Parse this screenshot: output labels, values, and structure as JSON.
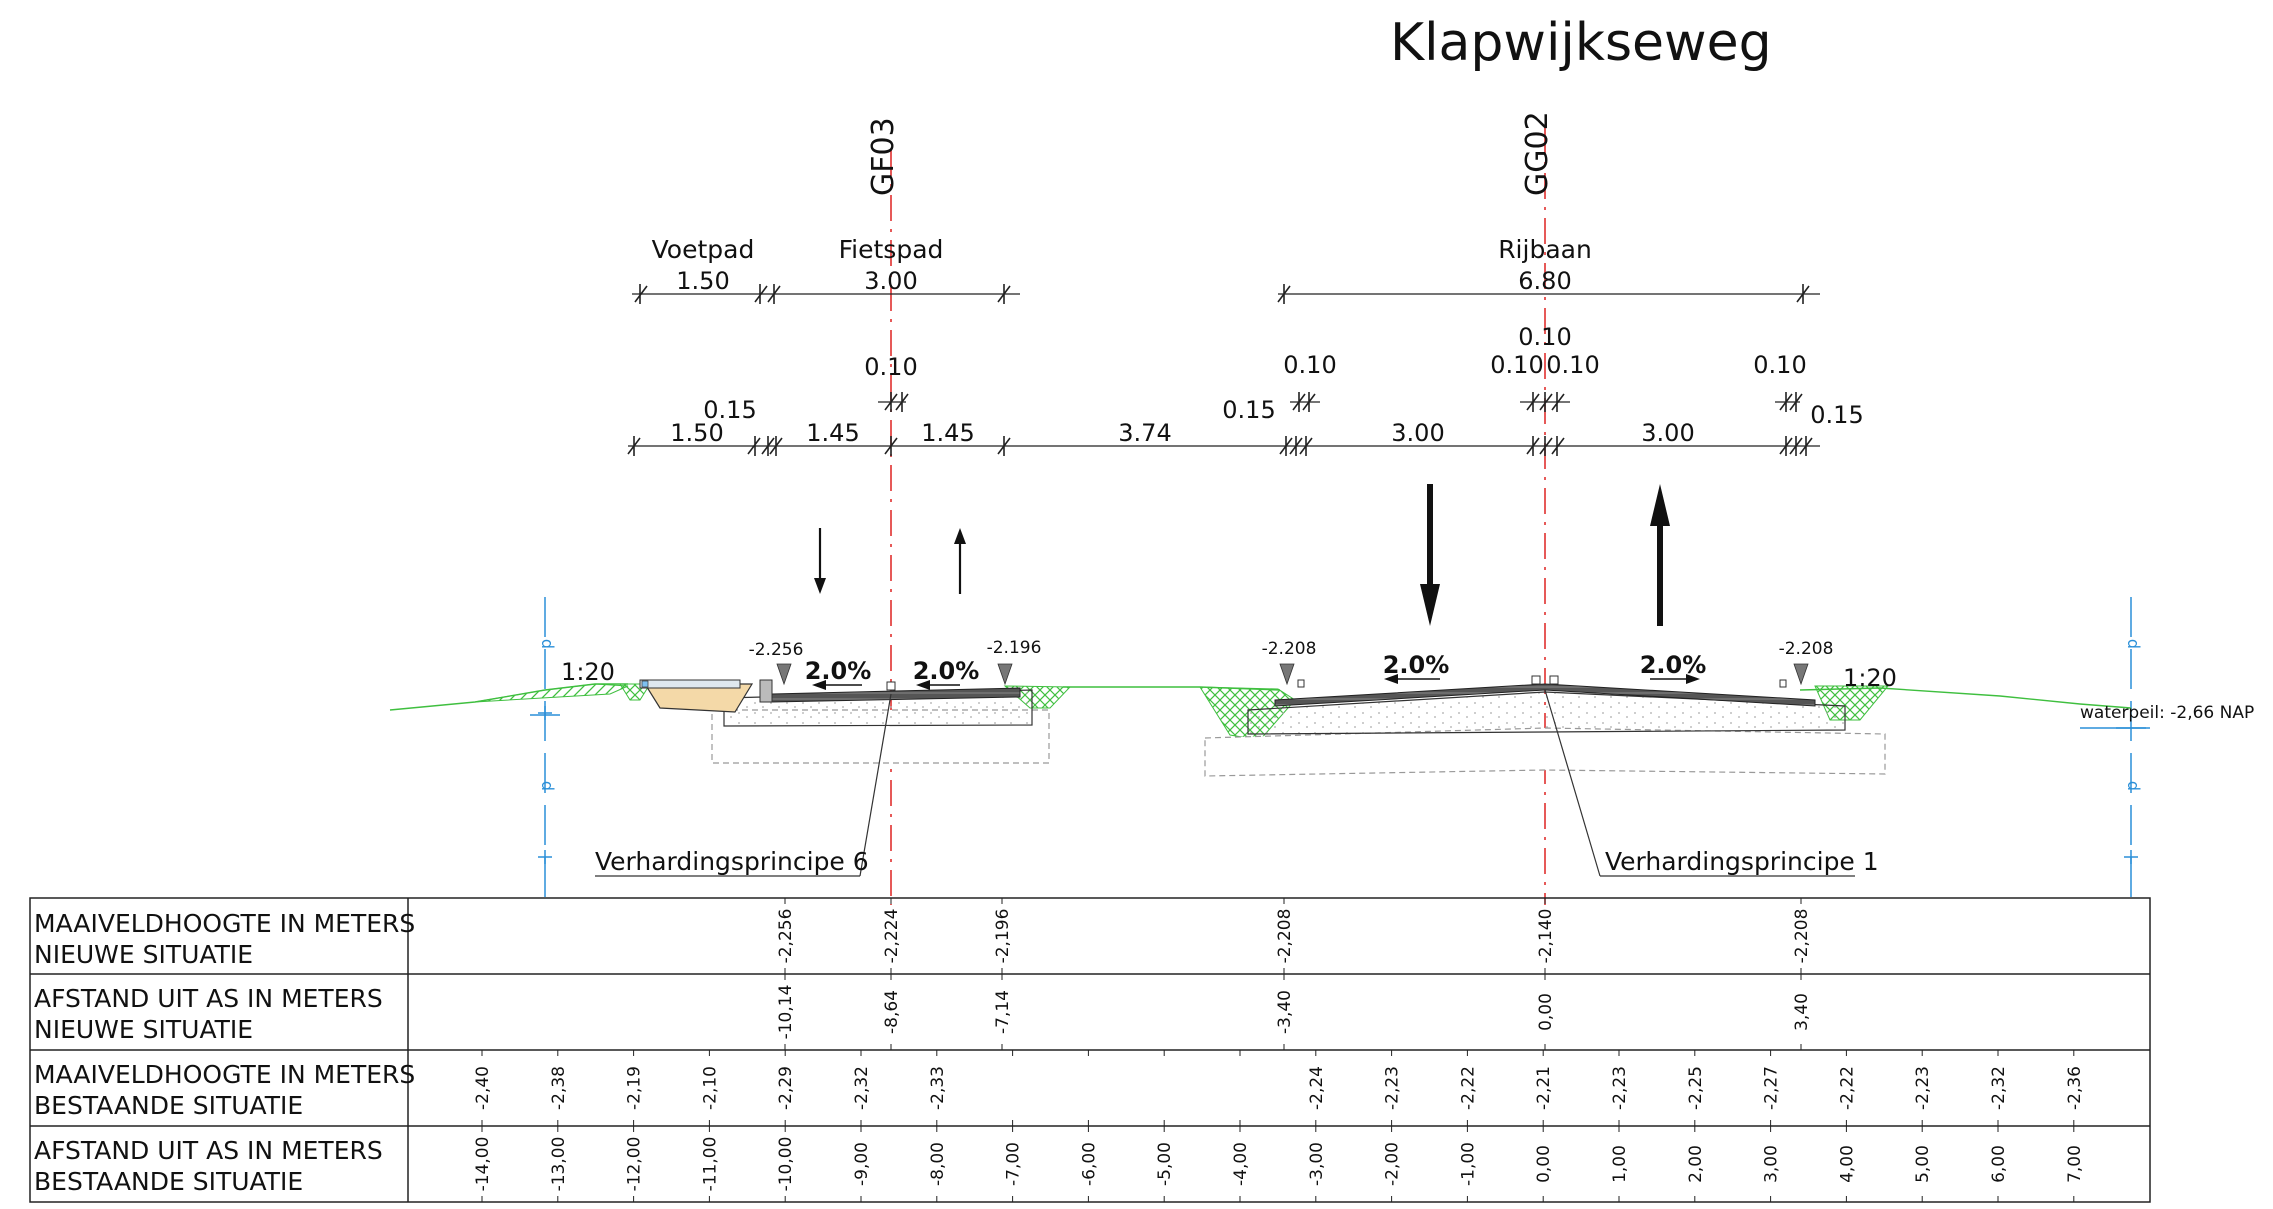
{
  "title": "Klapwijkseweg",
  "axes": [
    {
      "id": "gf03",
      "label": "GF03"
    },
    {
      "id": "gg02",
      "label": "GG02"
    }
  ],
  "dimensions_top": [
    {
      "id": "voetpad",
      "name": "Voetpad",
      "value": "1.50"
    },
    {
      "id": "fietspad",
      "name": "Fietspad",
      "value": "3.00"
    },
    {
      "id": "rijbaan",
      "name": "Rijbaan",
      "value": "6.80"
    }
  ],
  "dimensions_detail": {
    "seg_1_50": "1.50",
    "seg_0_15_left": "0.15",
    "seg_1_45_left": "1.45",
    "seg_1_45_right": "1.45",
    "seg_0_10_fiets": "0.10",
    "seg_3_74": "3.74",
    "seg_0_15_rb_left": "0.15",
    "seg_0_10_rb_left": "0.10",
    "seg_3_00_left": "3.00",
    "seg_0_10_center_top": "0.10",
    "seg_0_10_center_l": "0.10",
    "seg_0_10_center_r": "0.10",
    "seg_3_00_right": "3.00",
    "seg_0_10_rb_right": "0.10",
    "seg_0_15_rb_right": "0.15"
  },
  "levels": {
    "lvl_fp_left": "-2.256",
    "lvl_fp_right": "-2.196",
    "lvl_rb_left": "-2.208",
    "lvl_rb_right": "-2.208"
  },
  "slopes": {
    "slope_left": "1:20",
    "slope_right": "1:20",
    "fp_left": "2.0%",
    "fp_right": "2.0%",
    "rb_left": "2.0%",
    "rb_right": "2.0%"
  },
  "waterpeil": "waterpeil: -2,66 NAP",
  "pile_marker": "p",
  "callouts": {
    "left": "Verhardingsprincipe 6",
    "right": "Verhardingsprincipe 1"
  },
  "table": {
    "rows": [
      {
        "label1": "MAAIVELDHOOGTE IN METERS",
        "label2": "NIEUWE SITUATIE",
        "values": [
          "-2,256",
          "-2,224",
          "-2,196",
          "-2,208",
          "-2,140",
          "-2,208"
        ]
      },
      {
        "label1": "AFSTAND UIT AS IN METERS",
        "label2": "NIEUWE SITUATIE",
        "values": [
          "-10,14",
          "-8,64",
          "-7,14",
          "-3,40",
          "0,00",
          "3,40"
        ]
      },
      {
        "label1": "MAAIVELDHOOGTE IN METERS",
        "label2": "BESTAANDE SITUATIE",
        "values": [
          "-2,40",
          "-2,38",
          "-2,19",
          "-2,10",
          "-2,29",
          "-2,32",
          "-2,33",
          "",
          "",
          "",
          "",
          "-2,24",
          "-2,23",
          "-2,22",
          "-2,21",
          "-2,23",
          "-2,25",
          "-2,27",
          "-2,22",
          "-2,23",
          "-2,32",
          "-2,36"
        ]
      },
      {
        "label1": "AFSTAND UIT AS IN METERS",
        "label2": "BESTAANDE SITUATIE",
        "values": [
          "-14,00",
          "-13,00",
          "-12,00",
          "-11,00",
          "-10,00",
          "-9,00",
          "-8,00",
          "-7,00",
          "-6,00",
          "-5,00",
          "-4,00",
          "-3,00",
          "-2,00",
          "-1,00",
          "0,00",
          "1,00",
          "2,00",
          "3,00",
          "4,00",
          "5,00",
          "6,00",
          "7,00"
        ]
      }
    ]
  }
}
